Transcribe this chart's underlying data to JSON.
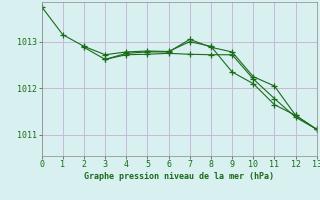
{
  "background_color": "#d8f0f0",
  "grid_color": "#c8b8d8",
  "line_color": "#1a6b1a",
  "spine_color": "#888888",
  "title": "Graphe pression niveau de la mer (hPa)",
  "xlim": [
    0,
    13
  ],
  "ylim": [
    1010.55,
    1013.85
  ],
  "yticks": [
    1011,
    1012,
    1013
  ],
  "xticks": [
    0,
    1,
    2,
    3,
    4,
    5,
    6,
    7,
    8,
    9,
    10,
    11,
    12,
    13
  ],
  "series": [
    {
      "x": [
        0,
        1,
        2,
        3,
        4,
        5,
        6,
        7,
        8,
        9,
        10,
        11,
        12,
        13
      ],
      "y": [
        1013.75,
        1013.15,
        1012.9,
        1012.72,
        1012.78,
        1012.8,
        1012.79,
        1013.0,
        1012.9,
        1012.35,
        1012.1,
        1011.65,
        1011.42,
        1011.12
      ]
    },
    {
      "x": [
        2,
        3,
        4,
        5,
        6,
        7,
        8,
        9,
        10,
        11,
        12,
        13
      ],
      "y": [
        1012.88,
        1012.62,
        1012.75,
        1012.78,
        1012.78,
        1013.05,
        1012.88,
        1012.78,
        1012.25,
        1012.05,
        1011.42,
        1011.12
      ]
    },
    {
      "x": [
        3,
        4,
        5,
        6,
        7,
        8,
        9,
        10,
        11,
        12,
        13
      ],
      "y": [
        1012.62,
        1012.72,
        1012.73,
        1012.75,
        1012.73,
        1012.72,
        1012.72,
        1012.2,
        1011.78,
        1011.38,
        1011.12
      ]
    }
  ]
}
